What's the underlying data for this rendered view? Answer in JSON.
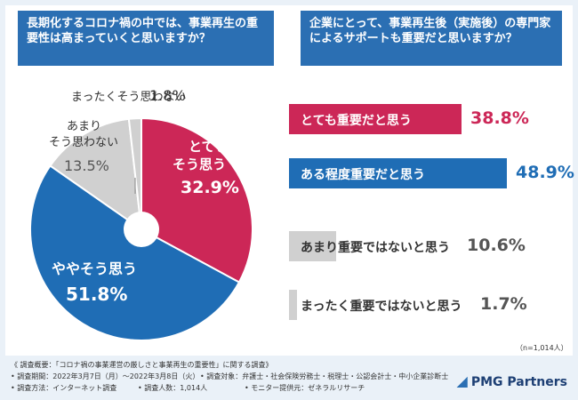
{
  "q1": "長期化するコロナ禍の中では、事業再生の重要性は高まっていくと思いますか？",
  "q2": "企業にとって、事業再生後（実施後）の専門家によるサポートも重要だと思いますか？",
  "chart_data": [
    {
      "type": "pie",
      "title": "長期化するコロナ禍の中では、事業再生の重要性は高まっていくと思いますか？",
      "categories": [
        "とてもそう思う",
        "ややそう思う",
        "あまりそう思わない",
        "まったくそう思わない"
      ],
      "values": [
        32.9,
        51.8,
        13.5,
        1.8
      ],
      "colors": [
        "#cc2757",
        "#1f6db5",
        "#d0d0d0",
        "#d0d0d0"
      ],
      "value_labels": [
        "32.9%",
        "51.8%",
        "13.5%",
        "1.8%"
      ]
    },
    {
      "type": "bar",
      "title": "企業にとって、事業再生後（実施後）の専門家によるサポートも重要だと思いますか？",
      "categories": [
        "とても重要だと思う",
        "ある程度重要だと思う",
        "あまり重要ではないと思う",
        "まったく重要ではないと思う"
      ],
      "values": [
        38.8,
        48.9,
        10.6,
        1.7
      ],
      "colors": [
        "#cc2757",
        "#1f6db5",
        "#d0d0d0",
        "#d0d0d0"
      ],
      "value_labels": [
        "38.8%",
        "48.9%",
        "10.6%",
        "1.7%"
      ]
    }
  ],
  "n_label": "（n=1,014人）",
  "notes": {
    "line1": "《 調査概要：「コロナ禍の事業運営の厳しさと事業再生の重要性」に関する調査》",
    "period": "• 調査期間：2022年3月7日（月）～2022年3月8日（火）",
    "target": "• 調査対象：弁護士・社会保険労務士・税理士・公認会計士・中小企業診断士",
    "method": "• 調査方法：インターネット調査",
    "count": "• 調査人数：1,014人",
    "provider": "• モニター提供元：ゼネラルリサーチ"
  },
  "logo": "PMG Partners"
}
